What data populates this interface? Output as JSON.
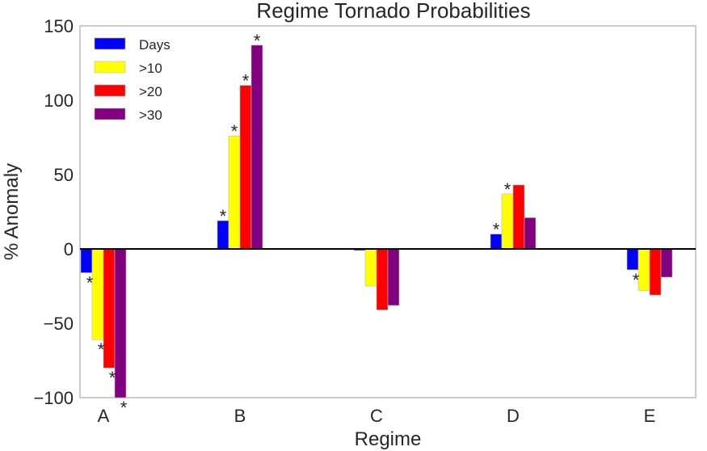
{
  "chart_data": {
    "type": "bar",
    "title": "Regime Tornado Probabilities",
    "xlabel": "Regime",
    "ylabel": "% Anomaly",
    "ylim": [
      -100,
      150
    ],
    "yticks": [
      -100,
      -50,
      0,
      50,
      100,
      150
    ],
    "ytick_labels": [
      "−100",
      "−50",
      "0",
      "50",
      "100",
      "150"
    ],
    "categories": [
      "A",
      "B",
      "C",
      "D",
      "E"
    ],
    "grid": false,
    "legend_position": "top-left",
    "significance_marker": "*",
    "series": [
      {
        "name": "Days",
        "color": "#0000ff",
        "values": [
          -16,
          19,
          -1,
          10,
          -14
        ],
        "significant": [
          true,
          true,
          false,
          true,
          true
        ]
      },
      {
        "name": ">10",
        "color": "#ffff00",
        "values": [
          -61,
          76,
          -25,
          37,
          -28
        ],
        "significant": [
          true,
          true,
          false,
          true,
          false
        ]
      },
      {
        "name": ">20",
        "color": "#ff0000",
        "values": [
          -80,
          110,
          -41,
          43,
          -31
        ],
        "significant": [
          true,
          true,
          false,
          false,
          false
        ]
      },
      {
        "name": ">30",
        "color": "#800080",
        "values": [
          -100,
          137,
          -38,
          21,
          -19
        ],
        "significant": [
          true,
          true,
          false,
          false,
          false
        ]
      }
    ]
  }
}
